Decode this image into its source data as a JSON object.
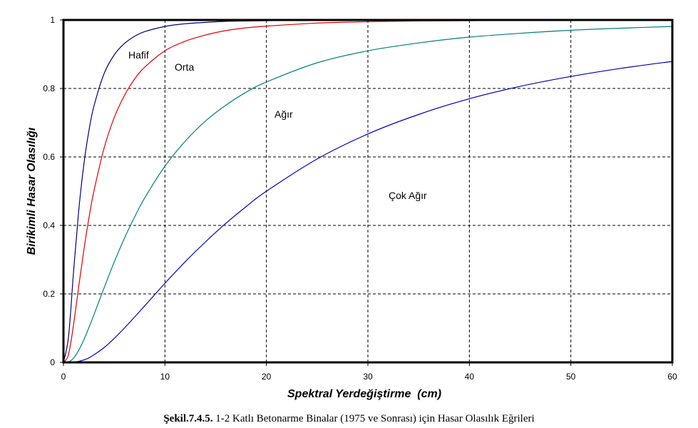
{
  "chart_data": {
    "type": "line",
    "title": "",
    "xlabel": "Spektral Yerdeğiştirme  (cm)",
    "ylabel": "Birikimli Hasar Olasılığı",
    "xlim": [
      0,
      60
    ],
    "ylim": [
      0,
      1
    ],
    "xticks": [
      "0",
      "10",
      "20",
      "30",
      "40",
      "50",
      "60"
    ],
    "yticks": [
      "0",
      "0.2",
      "0.4",
      "0.6",
      "0.8",
      "1"
    ],
    "grid": true,
    "x": [
      0,
      0.5,
      1,
      1.5,
      2,
      2.5,
      3,
      4,
      5,
      6,
      7,
      8,
      10,
      12,
      14,
      16,
      18,
      20,
      25,
      30,
      35,
      40,
      45,
      50,
      55,
      60
    ],
    "series": [
      {
        "name": "Hafif",
        "color": "#000080",
        "values": [
          0,
          0.075,
          0.266,
          0.441,
          0.576,
          0.675,
          0.748,
          0.843,
          0.898,
          0.931,
          0.952,
          0.966,
          0.981,
          0.989,
          0.993,
          0.996,
          0.997,
          0.998,
          0.999,
          1.0,
          1.0,
          1.0,
          1.0,
          1.0,
          1.0,
          1.0
        ]
      },
      {
        "name": "Orta",
        "color": "#e00000",
        "values": [
          0,
          0.023,
          0.111,
          0.22,
          0.326,
          0.42,
          0.5,
          0.625,
          0.715,
          0.779,
          0.827,
          0.862,
          0.91,
          0.938,
          0.956,
          0.969,
          0.977,
          0.982,
          0.991,
          0.995,
          0.997,
          0.998,
          0.999,
          0.999,
          1.0,
          1.0
        ]
      },
      {
        "name": "Ağır",
        "color": "#008080",
        "values": [
          0,
          0.0015,
          0.0125,
          0.035,
          0.065,
          0.101,
          0.139,
          0.217,
          0.293,
          0.362,
          0.424,
          0.48,
          0.573,
          0.646,
          0.705,
          0.751,
          0.789,
          0.819,
          0.875,
          0.91,
          0.933,
          0.95,
          0.961,
          0.97,
          0.976,
          0.981
        ]
      },
      {
        "name": "Çok Ağır",
        "color": "#0000c0",
        "values": [
          0,
          0.0,
          0.0007,
          0.003,
          0.007,
          0.013,
          0.022,
          0.043,
          0.07,
          0.1,
          0.132,
          0.165,
          0.231,
          0.294,
          0.352,
          0.406,
          0.455,
          0.5,
          0.594,
          0.667,
          0.724,
          0.77,
          0.806,
          0.835,
          0.859,
          0.879
        ]
      }
    ],
    "annotations": [
      "Hafif",
      "Orta",
      "Ağır",
      "Çok Ağır"
    ]
  },
  "caption": {
    "label": "Şekil.7.4.5.",
    "text": " 1-2 Katlı Betonarme Binalar (1975 ve Sonrası) için Hasar Olasılık Eğrileri"
  }
}
